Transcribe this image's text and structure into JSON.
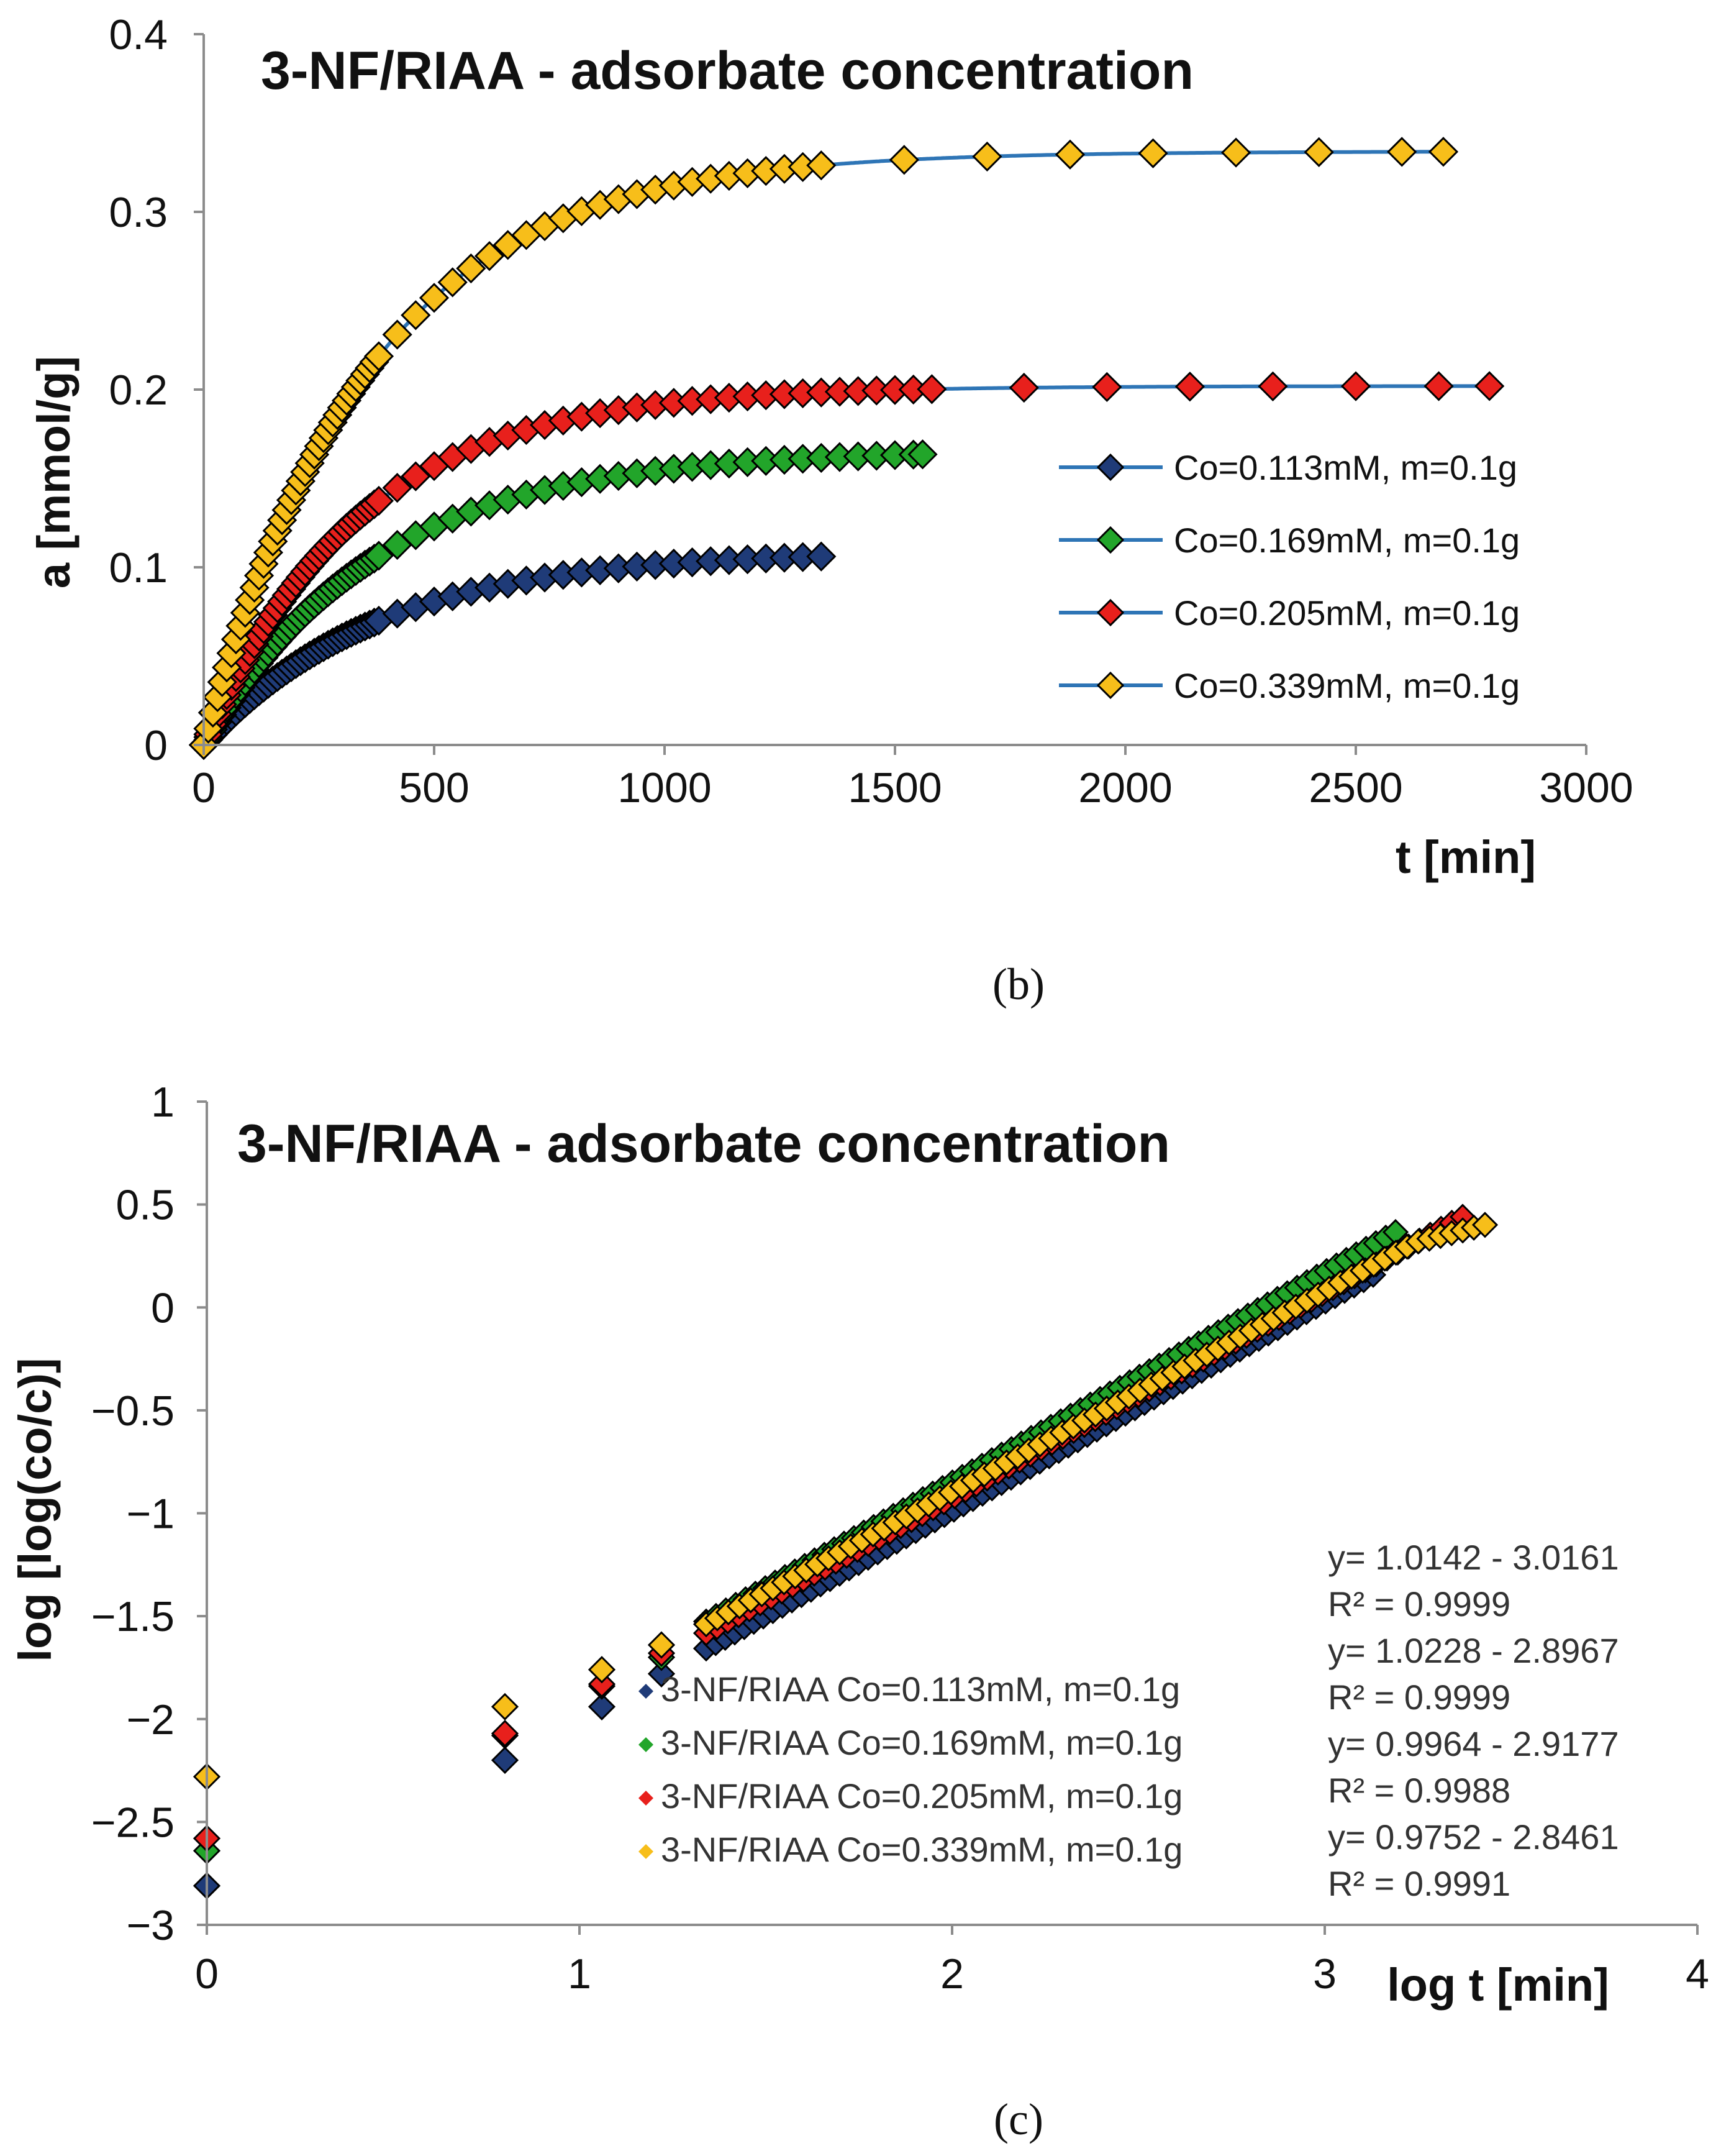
{
  "chart_data": [
    {
      "type": "line",
      "title": "3-NF/RIAA - adsorbate concentration",
      "xlabel": "t [min]",
      "ylabel": "a [mmol/g]",
      "caption": "(b)",
      "xlim": [
        0,
        3000
      ],
      "ylim": [
        0,
        0.4
      ],
      "x_ticks": [
        "0",
        "500",
        "1000",
        "1500",
        "2000",
        "2500",
        "3000"
      ],
      "y_ticks": [
        "0",
        "0.1",
        "0.2",
        "0.3",
        "0.4"
      ],
      "legend_position": "right",
      "series": [
        {
          "name": "Co=0.113mM, m=0.1g",
          "color": "#1f3b78",
          "qe": 0.109,
          "k": 0.0027,
          "tmax": 1340,
          "dt_dense": 10,
          "t_dense_end": 380,
          "dt_sparse": 40
        },
        {
          "name": "Co=0.169mM, m=0.1g",
          "color": "#22a52a",
          "qe": 0.166,
          "k": 0.0027,
          "tmax": 1560,
          "dt_dense": 10,
          "t_dense_end": 380,
          "dt_sparse": 40
        },
        {
          "name": "Co=0.205mM, m=0.1g",
          "color": "#e8201c",
          "qe": 0.202,
          "k": 0.003,
          "tmax": 2790,
          "dt_dense": 10,
          "t_dense_end": 380,
          "dt_sparse": 40,
          "t_switch": 1600,
          "dt_tail": 180
        },
        {
          "name": "Co=0.339mM, m=0.1g",
          "color": "#f7be1a",
          "qe": 0.334,
          "k": 0.0028,
          "tmax": 2690,
          "dt_dense": 10,
          "t_dense_end": 380,
          "dt_sparse": 40,
          "t_switch": 1340,
          "dt_tail": 180
        }
      ]
    },
    {
      "type": "scatter",
      "title": "3-NF/RIAA - adsorbate concentration",
      "xlabel": "log t [min]",
      "ylabel": "log [log(co/c)]",
      "caption": "(c)",
      "xlim": [
        0,
        4
      ],
      "ylim": [
        -3,
        1
      ],
      "x_ticks": [
        "0",
        "1",
        "2",
        "3",
        "4"
      ],
      "y_ticks": [
        "1",
        "0.5",
        "0",
        "−0.5",
        "−1",
        "−1.5",
        "−2",
        "−2.5",
        "−3"
      ],
      "legend_position": "bottom-center",
      "series": [
        {
          "name": "3-NF/RIAA Co=0.113mM, m=0.1g",
          "color": "#1f3b78",
          "slope": 1.0142,
          "intercept": -3.0161,
          "xmax": 3.13
        },
        {
          "name": "3-NF/RIAA Co=0.169mM, m=0.1g",
          "color": "#22a52a",
          "slope": 1.0228,
          "intercept": -2.8967,
          "xmax": 3.19
        },
        {
          "name": "3-NF/RIAA Co=0.205mM, m=0.1g",
          "color": "#e8201c",
          "slope": 0.9964,
          "intercept": -2.9177,
          "xmax": 3.37
        },
        {
          "name": "3-NF/RIAA Co=0.339mM, m=0.1g",
          "color": "#f7be1a",
          "slope": 0.9752,
          "intercept": -2.8461,
          "xmax": 3.43
        }
      ],
      "early_points": [
        {
          "x": 0,
          "y": [
            -2.81,
            -2.64,
            -2.58,
            -2.28
          ]
        },
        {
          "x": 0.8,
          "y": [
            -2.2,
            -2.08,
            -2.07,
            -1.94
          ]
        },
        {
          "x": 1.06,
          "y": [
            -1.94,
            -1.84,
            -1.83,
            -1.76
          ]
        },
        {
          "x": 1.22,
          "y": [
            -1.78,
            -1.7,
            -1.68,
            -1.64
          ]
        }
      ],
      "annotations": [
        "y= 1.0142 - 3.0161",
        "R² = 0.9999",
        "y= 1.0228 - 2.8967",
        "R² = 0.9999",
        "y= 0.9964 - 2.9177",
        "R² = 0.9988",
        "y= 0.9752 - 2.8461",
        "R² = 0.9991"
      ]
    }
  ],
  "style": {
    "line_color": "#2e75b6",
    "axis_color": "#8c8c8c"
  }
}
